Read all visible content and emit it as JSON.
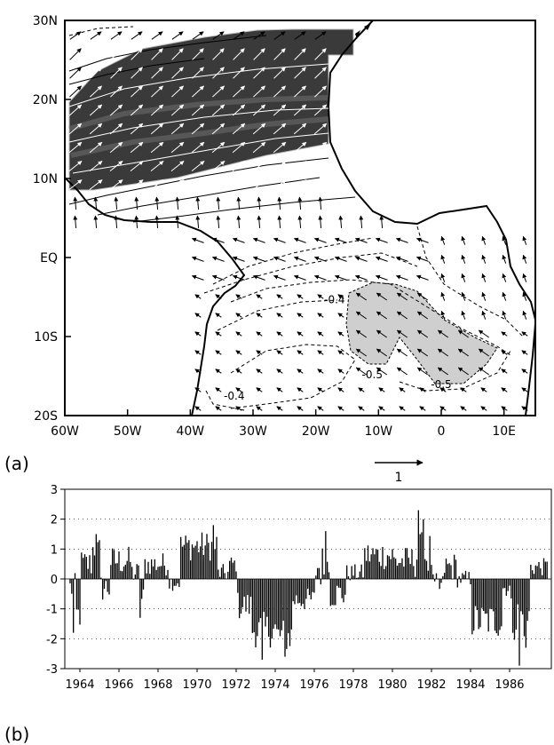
{
  "panels": {
    "a_label": "(a)",
    "b_label": "(b)",
    "ref_vector_label": "1"
  },
  "chart_data": [
    {
      "type": "map",
      "xlabel": "",
      "ylabel": "",
      "xlim": [
        -60,
        15
      ],
      "ylim": [
        -20,
        30
      ],
      "xticks": [
        {
          "value": -60,
          "label": "60W"
        },
        {
          "value": -50,
          "label": "50W"
        },
        {
          "value": -40,
          "label": "40W"
        },
        {
          "value": -30,
          "label": "30W"
        },
        {
          "value": -20,
          "label": "20W"
        },
        {
          "value": -10,
          "label": "10W"
        },
        {
          "value": 0,
          "label": "0"
        },
        {
          "value": 10,
          "label": "10E"
        }
      ],
      "yticks": [
        {
          "value": 30,
          "label": "30N"
        },
        {
          "value": 20,
          "label": "20N"
        },
        {
          "value": 10,
          "label": "10N"
        },
        {
          "value": 0,
          "label": "EQ"
        },
        {
          "value": -10,
          "label": "10S"
        },
        {
          "value": -20,
          "label": "20S"
        }
      ],
      "contour_labels": [
        {
          "text": "-0.4",
          "lon": -17,
          "lat": -5.8
        },
        {
          "text": "-0.5",
          "lon": -11,
          "lat": -15.3
        },
        {
          "text": "-0.5",
          "lon": 0,
          "lat": -16.5
        },
        {
          "text": "-0.4",
          "lon": -33,
          "lat": -18
        }
      ],
      "shading": {
        "dark_color": "#3a3a3a",
        "light_color": "#cfcfcf"
      }
    },
    {
      "type": "bar",
      "title": "",
      "xlabel": "",
      "ylabel": "",
      "ylim": [
        -3,
        3
      ],
      "yticks": [
        3,
        2,
        1,
        0,
        -1,
        -2,
        -3
      ],
      "xticks": [
        "1964",
        "1966",
        "1968",
        "1970",
        "1972",
        "1974",
        "1976",
        "1978",
        "1980",
        "1982",
        "1984",
        "1986"
      ],
      "x_start": 1963.5,
      "x_end": 1988.0,
      "segments": [
        {
          "start": 1963.5,
          "end": 1963.75,
          "mean": -0.3,
          "amp": 0.5
        },
        {
          "start": 1963.75,
          "end": 1964.0,
          "mean": -1.2,
          "amp": 0.5
        },
        {
          "start": 1964.0,
          "end": 1964.6,
          "mean": 0.5,
          "amp": 0.5
        },
        {
          "start": 1964.6,
          "end": 1965.0,
          "mean": 1.0,
          "amp": 0.4
        },
        {
          "start": 1965.0,
          "end": 1965.5,
          "mean": -0.3,
          "amp": 0.5
        },
        {
          "start": 1965.5,
          "end": 1966.6,
          "mean": 0.6,
          "amp": 0.5
        },
        {
          "start": 1966.6,
          "end": 1967.0,
          "mean": 0.2,
          "amp": 0.4
        },
        {
          "start": 1967.0,
          "end": 1967.3,
          "mean": -0.7,
          "amp": 0.5
        },
        {
          "start": 1967.3,
          "end": 1968.5,
          "mean": 0.5,
          "amp": 0.4
        },
        {
          "start": 1968.5,
          "end": 1969.1,
          "mean": -0.1,
          "amp": 0.3
        },
        {
          "start": 1969.1,
          "end": 1971.0,
          "mean": 1.1,
          "amp": 0.5
        },
        {
          "start": 1971.0,
          "end": 1971.6,
          "mean": 0.2,
          "amp": 0.3
        },
        {
          "start": 1971.6,
          "end": 1972.0,
          "mean": 0.5,
          "amp": 0.3
        },
        {
          "start": 1972.0,
          "end": 1972.8,
          "mean": -0.9,
          "amp": 0.5
        },
        {
          "start": 1972.8,
          "end": 1974.0,
          "mean": -1.7,
          "amp": 0.6
        },
        {
          "start": 1974.0,
          "end": 1974.9,
          "mean": -1.9,
          "amp": 0.6
        },
        {
          "start": 1974.9,
          "end": 1976.0,
          "mean": -0.7,
          "amp": 0.4
        },
        {
          "start": 1976.0,
          "end": 1976.8,
          "mean": 0.4,
          "amp": 0.8
        },
        {
          "start": 1976.8,
          "end": 1977.6,
          "mean": -0.5,
          "amp": 0.5
        },
        {
          "start": 1977.6,
          "end": 1978.5,
          "mean": 0.2,
          "amp": 0.3
        },
        {
          "start": 1978.5,
          "end": 1980.0,
          "mean": 0.8,
          "amp": 0.5
        },
        {
          "start": 1980.0,
          "end": 1981.0,
          "mean": 0.6,
          "amp": 0.5
        },
        {
          "start": 1981.0,
          "end": 1982.0,
          "mean": 0.8,
          "amp": 0.8
        },
        {
          "start": 1982.0,
          "end": 1982.6,
          "mean": -0.3,
          "amp": 0.5
        },
        {
          "start": 1982.6,
          "end": 1983.3,
          "mean": 0.4,
          "amp": 0.5
        },
        {
          "start": 1983.3,
          "end": 1984.0,
          "mean": 0.0,
          "amp": 0.3
        },
        {
          "start": 1984.0,
          "end": 1985.6,
          "mean": -1.4,
          "amp": 0.6
        },
        {
          "start": 1985.6,
          "end": 1986.0,
          "mean": -0.3,
          "amp": 0.3
        },
        {
          "start": 1986.0,
          "end": 1987.0,
          "mean": -1.3,
          "amp": 0.8
        },
        {
          "start": 1987.0,
          "end": 1988.0,
          "mean": 0.4,
          "amp": 0.3
        }
      ],
      "highlights": [
        {
          "year": 1963.7,
          "value": -1.8
        },
        {
          "year": 1964.8,
          "value": 1.5
        },
        {
          "year": 1967.1,
          "value": -1.3
        },
        {
          "year": 1970.8,
          "value": 1.8
        },
        {
          "year": 1973.3,
          "value": -2.7
        },
        {
          "year": 1974.5,
          "value": -2.6
        },
        {
          "year": 1976.6,
          "value": 1.6
        },
        {
          "year": 1981.3,
          "value": 2.3
        },
        {
          "year": 1981.6,
          "value": 2.0
        },
        {
          "year": 1986.5,
          "value": -2.9
        },
        {
          "year": 1986.8,
          "value": -2.3
        }
      ]
    }
  ]
}
